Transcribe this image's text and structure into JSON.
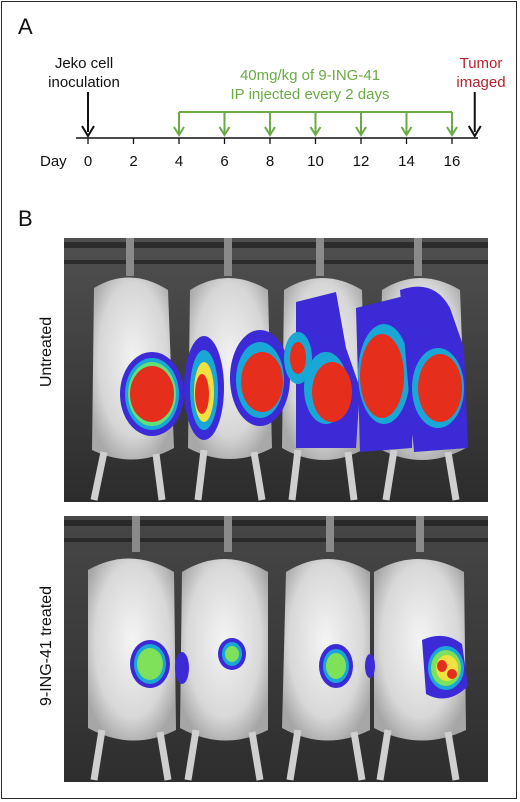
{
  "panel_a": {
    "letter": "A",
    "inoculation_label_line1": "Jeko cell",
    "inoculation_label_line2": "inoculation",
    "treatment_label_line1": "40mg/kg of 9-ING-41",
    "treatment_label_line2": "IP injected every 2 days",
    "imaging_label_line1": "Tumor",
    "imaging_label_line2": "imaged",
    "day_label": "Day",
    "ticks": [
      "0",
      "2",
      "4",
      "6",
      "8",
      "10",
      "12",
      "14",
      "16"
    ],
    "injection_days": [
      4,
      6,
      8,
      10,
      12,
      14,
      16
    ],
    "inoculation_day": 0,
    "imaging_day": 17,
    "colors": {
      "treatment": "#6aab46",
      "imaging": "#b5222d",
      "axis": "#111111"
    }
  },
  "panel_b": {
    "letter": "B",
    "untreated_label": "Untreated",
    "treated_label": "9-ING-41 treated"
  }
}
